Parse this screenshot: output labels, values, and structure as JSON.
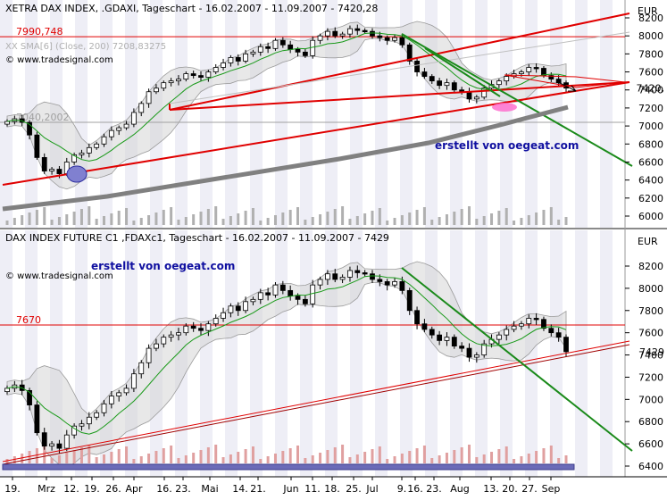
{
  "chart_data": [
    {
      "type": "candlestick",
      "title": "XETRA DAX INDEX, .GDAXI, Tageschart - 16.02.2007 - 11.09.2007 - 7420,28",
      "subtitle": "XX SMA[6] (Close, 200) 7208,83275",
      "source": "© www.tradesignal.com",
      "annotation": "erstellt von oegeat.com",
      "y_unit": "EUR",
      "ylim": [
        5900,
        8300
      ],
      "y_ticks": [
        6000,
        6200,
        6400,
        6600,
        6800,
        7000,
        7200,
        7400,
        7600,
        7800,
        8000,
        8200
      ],
      "hlines": [
        {
          "label": "7990,748",
          "value": 7990.748
        },
        {
          "label": "7040,2002",
          "value": 7040.2
        }
      ],
      "last_label": "7420,",
      "close": [
        7050,
        7080,
        7040,
        6900,
        6650,
        6500,
        6520,
        6470,
        6600,
        6680,
        6700,
        6760,
        6800,
        6880,
        6950,
        6980,
        7020,
        7150,
        7250,
        7380,
        7420,
        7480,
        7500,
        7520,
        7580,
        7560,
        7540,
        7600,
        7650,
        7700,
        7760,
        7720,
        7800,
        7820,
        7880,
        7860,
        7950,
        7900,
        7850,
        7820,
        7780,
        7950,
        8000,
        8050,
        8000,
        8020,
        8080,
        8060,
        8050,
        8000,
        7980,
        7950,
        7980,
        7900,
        7720,
        7600,
        7550,
        7500,
        7450,
        7480,
        7400,
        7380,
        7300,
        7320,
        7420,
        7460,
        7500,
        7550,
        7580,
        7600,
        7650,
        7640,
        7560,
        7520,
        7480,
        7420
      ]
    },
    {
      "type": "candlestick",
      "title": "DAX INDEX FUTURE C1 ,FDAXc1, Tageschart - 16.02.2007 - 11.09.2007 - 7429",
      "source": "© www.tradesignal.com",
      "annotation": "erstellt von oegeat.com",
      "y_unit": "EUR",
      "ylim": [
        6350,
        8400
      ],
      "y_ticks": [
        6400,
        6600,
        6800,
        7000,
        7200,
        7400,
        7600,
        7800,
        8000,
        8200
      ],
      "hlines": [
        {
          "label": "7670",
          "value": 7670
        }
      ],
      "last_label": "7429",
      "close": [
        7100,
        7130,
        7080,
        6950,
        6700,
        6580,
        6600,
        6560,
        6680,
        6760,
        6780,
        6840,
        6880,
        6960,
        7030,
        7060,
        7100,
        7230,
        7330,
        7460,
        7500,
        7560,
        7580,
        7600,
        7660,
        7640,
        7620,
        7680,
        7730,
        7780,
        7840,
        7800,
        7880,
        7900,
        7960,
        7940,
        8030,
        7980,
        7930,
        7900,
        7860,
        8030,
        8080,
        8130,
        8080,
        8100,
        8160,
        8140,
        8130,
        8080,
        8060,
        8030,
        8060,
        7980,
        7800,
        7680,
        7630,
        7580,
        7530,
        7560,
        7480,
        7460,
        7380,
        7400,
        7500,
        7540,
        7580,
        7630,
        7660,
        7680,
        7730,
        7720,
        7640,
        7600,
        7560,
        7429
      ]
    }
  ],
  "x_axis": {
    "labels": [
      "19.",
      "Mrz",
      "12.",
      "19.",
      "26.",
      "Apr",
      "16.",
      "23.",
      "Mai",
      "14.",
      "21.",
      "Jun",
      "11.",
      "18.",
      "25.",
      "Jul",
      "9.",
      "16.",
      "23.",
      "Aug",
      "13.",
      "20.",
      "27.",
      "Sep"
    ]
  }
}
